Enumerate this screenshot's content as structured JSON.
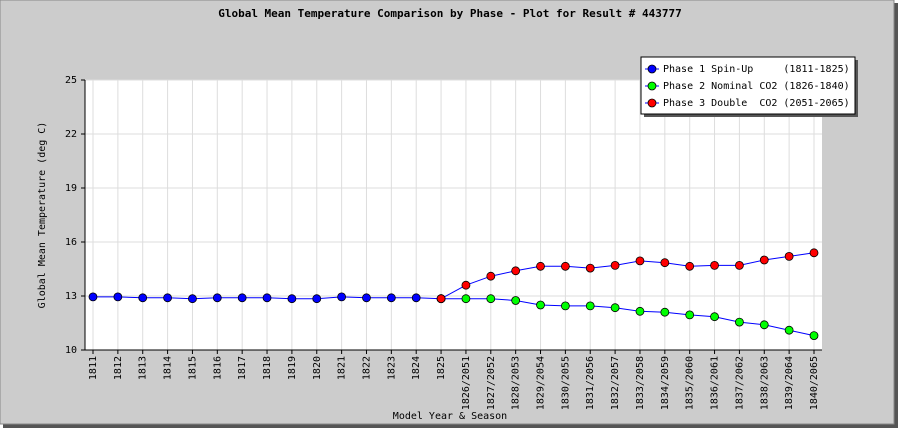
{
  "chart_data": {
    "type": "line",
    "title": "Global Mean Temperature Comparison by Phase - Plot for Result # 443777",
    "x_label": "Model Year & Season",
    "y_label": "Global Mean Temperature (deg C)",
    "categories": [
      "1811",
      "1812",
      "1813",
      "1814",
      "1815",
      "1816",
      "1817",
      "1818",
      "1819",
      "1820",
      "1821",
      "1822",
      "1823",
      "1824",
      "1825",
      "1826/2051",
      "1827/2052",
      "1828/2053",
      "1829/2054",
      "1830/2055",
      "1831/2056",
      "1832/2057",
      "1833/2058",
      "1834/2059",
      "1835/2060",
      "1836/2061",
      "1837/2062",
      "1838/2063",
      "1839/2064",
      "1840/2065"
    ],
    "series": [
      {
        "name": "Phase 1 Spin-Up     (1811-1825)",
        "color": "#0000ff",
        "values": [
          12.95,
          12.95,
          12.9,
          12.9,
          12.85,
          12.9,
          12.9,
          12.9,
          12.85,
          12.85,
          12.95,
          12.9,
          12.9,
          12.9,
          12.85,
          null,
          null,
          null,
          null,
          null,
          null,
          null,
          null,
          null,
          null,
          null,
          null,
          null,
          null,
          null
        ]
      },
      {
        "name": "Phase 2 Nominal CO2 (1826-1840)",
        "color": "#00ff00",
        "values": [
          null,
          null,
          null,
          null,
          null,
          null,
          null,
          null,
          null,
          null,
          null,
          null,
          null,
          null,
          12.85,
          12.85,
          12.85,
          12.75,
          12.5,
          12.45,
          12.45,
          12.35,
          12.15,
          12.1,
          11.95,
          11.85,
          11.55,
          11.4,
          11.1,
          10.8
        ]
      },
      {
        "name": "Phase 3 Double  CO2 (2051-2065)",
        "color": "#ff0000",
        "values": [
          null,
          null,
          null,
          null,
          null,
          null,
          null,
          null,
          null,
          null,
          null,
          null,
          null,
          null,
          12.85,
          13.6,
          14.1,
          14.4,
          14.65,
          14.65,
          14.55,
          14.7,
          14.95,
          14.85,
          14.65,
          14.7,
          14.7,
          15.0,
          15.2,
          15.4
        ]
      }
    ],
    "ylim": [
      10,
      25
    ],
    "yticks": [
      10,
      13,
      16,
      19,
      22,
      25
    ],
    "grid": true,
    "legend": "top-right"
  }
}
